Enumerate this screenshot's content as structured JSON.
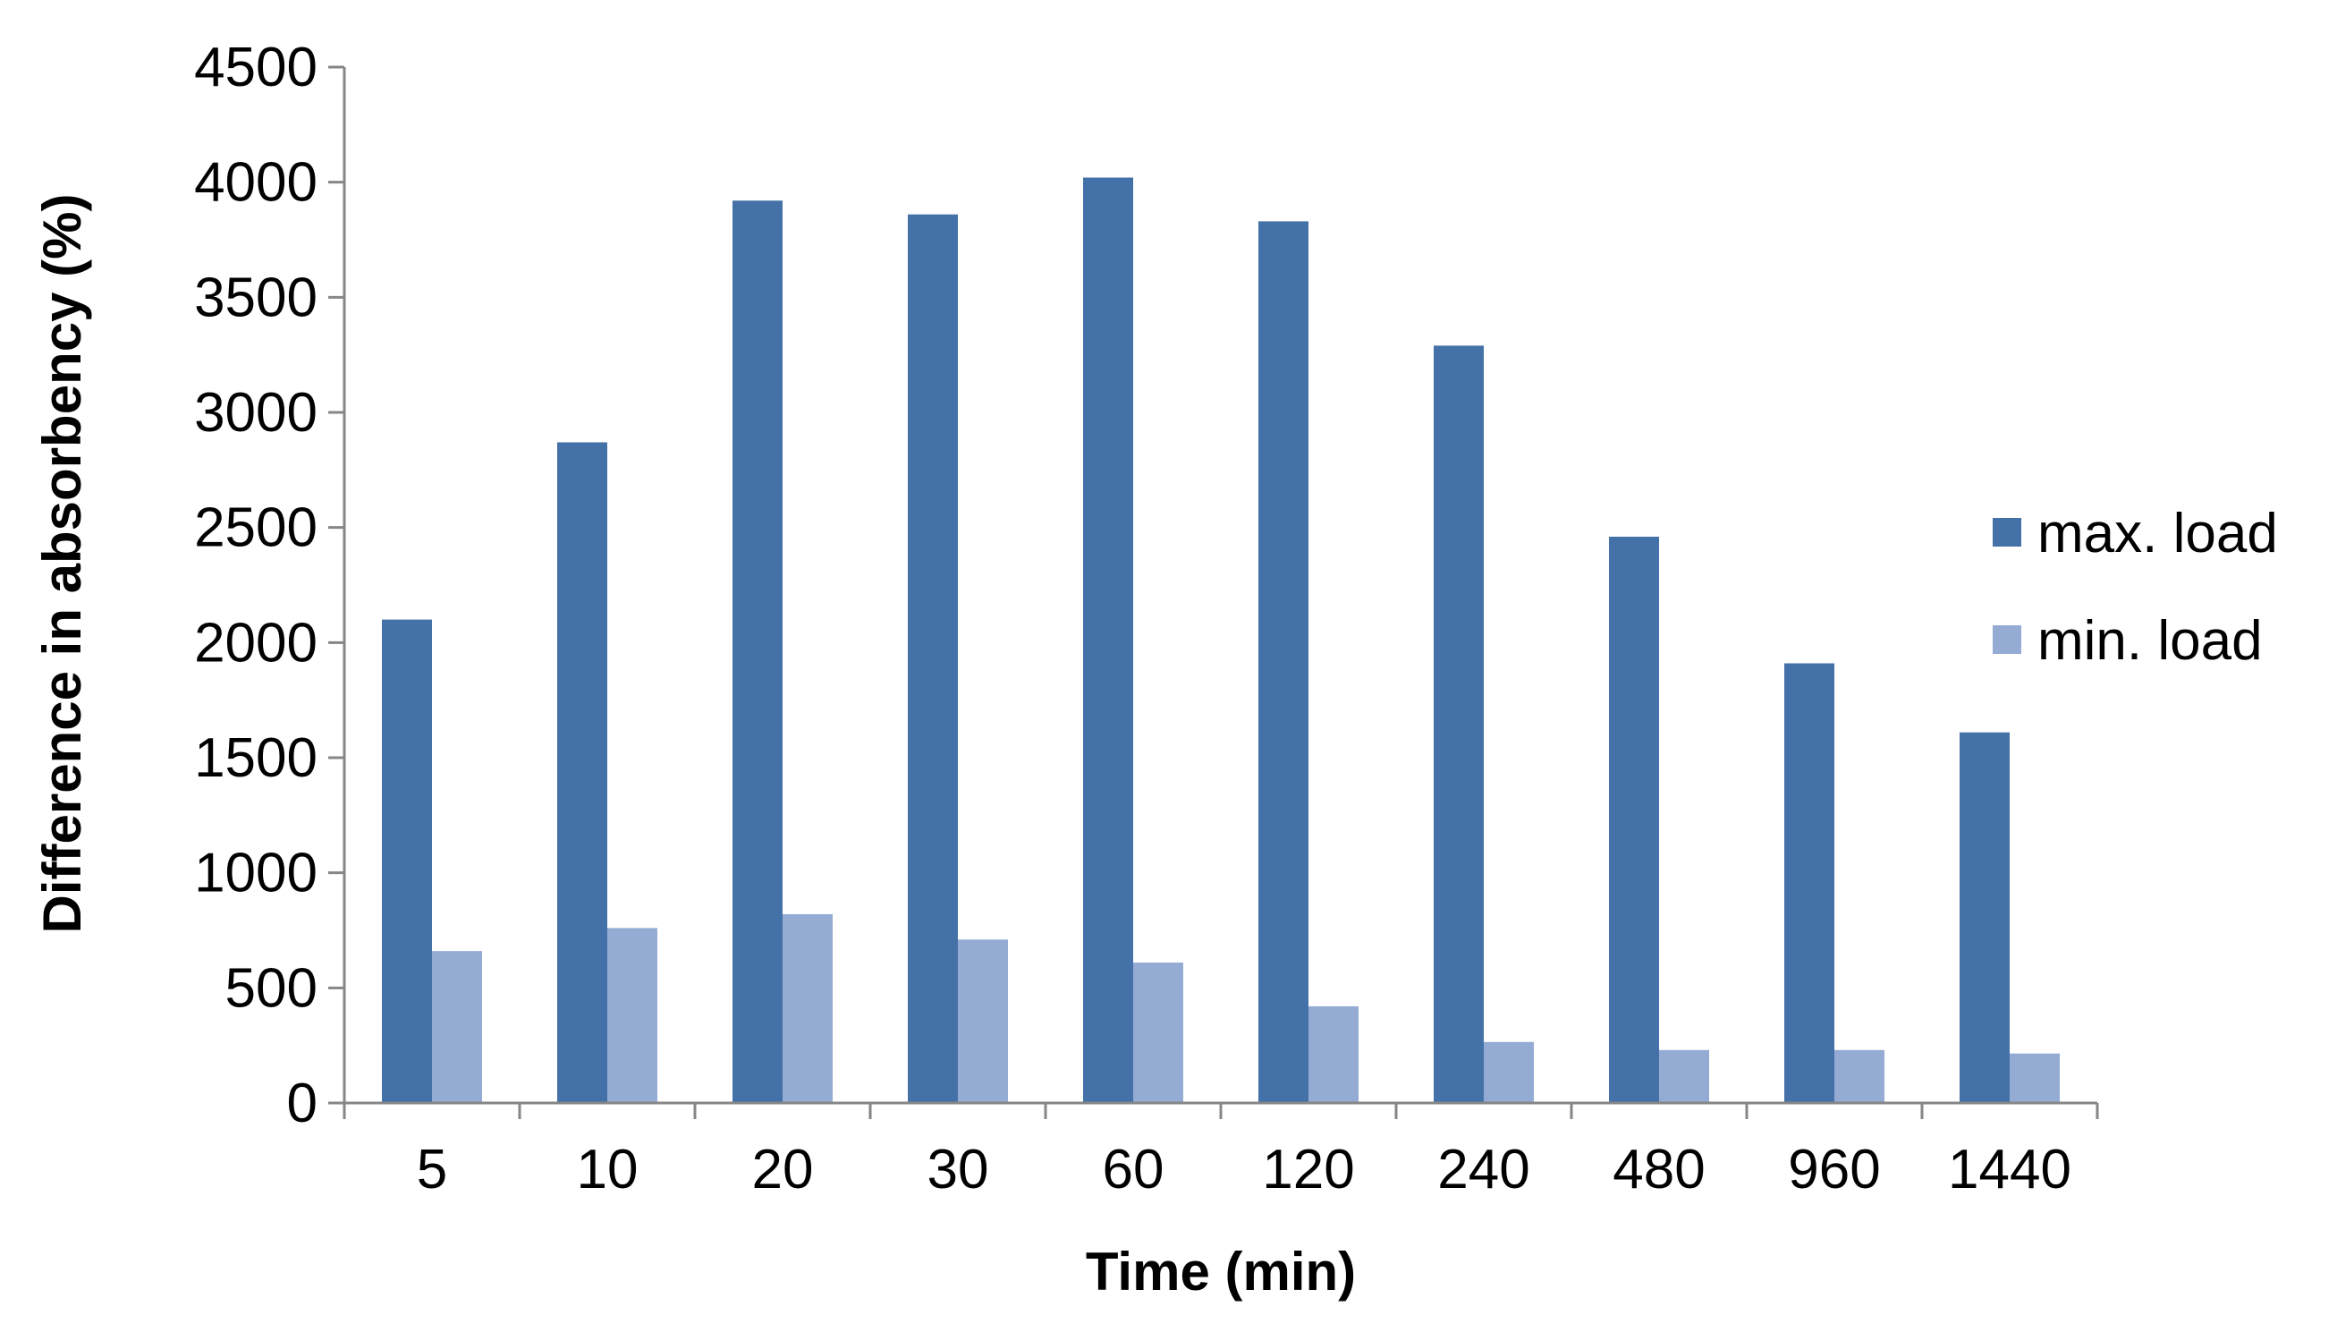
{
  "chart_data": {
    "type": "bar",
    "title": "",
    "xlabel": "Time (min)",
    "ylabel": "Difference in absorbency (%)",
    "ylim": [
      0,
      4500
    ],
    "yticks": [
      0,
      500,
      1000,
      1500,
      2000,
      2500,
      3000,
      3500,
      4000,
      4500
    ],
    "categories": [
      "5",
      "10",
      "20",
      "30",
      "60",
      "120",
      "240",
      "480",
      "960",
      "1440"
    ],
    "series": [
      {
        "name": "max. load",
        "color": "#4472A8",
        "values": [
          2100,
          2870,
          3920,
          3860,
          4020,
          3830,
          3290,
          2460,
          1910,
          1610
        ]
      },
      {
        "name": "min. load",
        "color": "#94ABD3",
        "values": [
          660,
          760,
          820,
          710,
          610,
          420,
          265,
          230,
          230,
          215
        ]
      }
    ],
    "grid": false,
    "legend_position": "right"
  }
}
